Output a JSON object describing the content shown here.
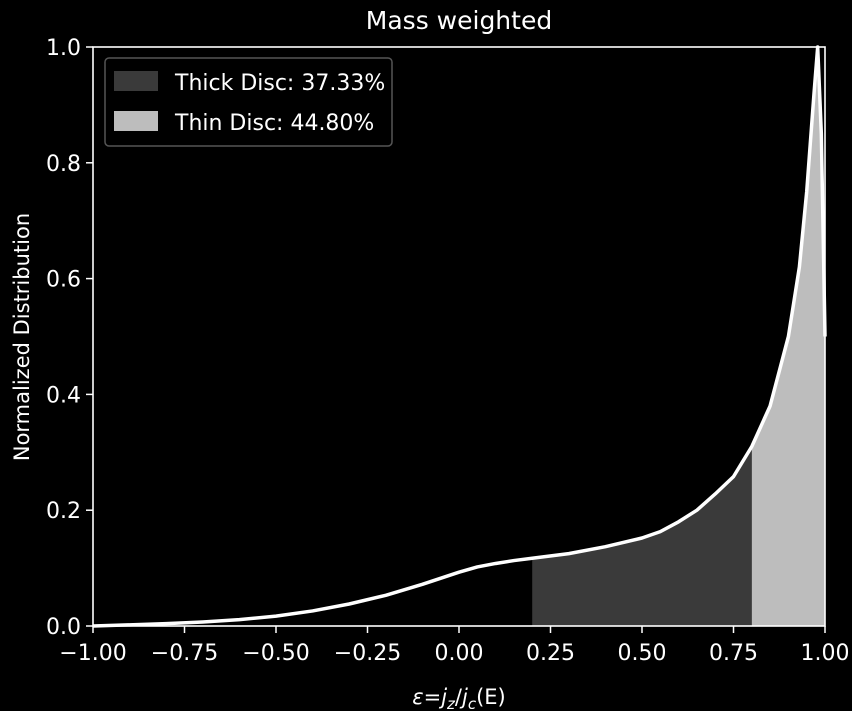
{
  "chart_data": {
    "type": "area",
    "title": "Mass weighted",
    "xlabel": {
      "eps": "ε",
      "eq": "=",
      "j": "j",
      "z": "z",
      "slash": "/",
      "c": "c",
      "E": "(E)"
    },
    "ylabel": "Normalized Distribution",
    "xlim": [
      -1.0,
      1.0
    ],
    "ylim": [
      0.0,
      1.0
    ],
    "xticks": [
      -1.0,
      -0.75,
      -0.5,
      -0.25,
      0.0,
      0.25,
      0.5,
      0.75,
      1.0
    ],
    "xtick_labels": [
      "−1.00",
      "−0.75",
      "−0.50",
      "−0.25",
      "0.00",
      "0.25",
      "0.50",
      "0.75",
      "1.00"
    ],
    "yticks": [
      0.0,
      0.2,
      0.4,
      0.6,
      0.8,
      1.0
    ],
    "ytick_labels": [
      "0.0",
      "0.2",
      "0.4",
      "0.6",
      "0.8",
      "1.0"
    ],
    "grid": false,
    "legend_position": "top-left",
    "curve": {
      "color": "#ffffff",
      "x": [
        -1.0,
        -0.9,
        -0.8,
        -0.7,
        -0.6,
        -0.5,
        -0.4,
        -0.3,
        -0.2,
        -0.1,
        0.0,
        0.05,
        0.1,
        0.15,
        0.2,
        0.3,
        0.4,
        0.5,
        0.55,
        0.6,
        0.65,
        0.7,
        0.75,
        0.8,
        0.85,
        0.9,
        0.93,
        0.95,
        0.97,
        0.98,
        0.99,
        1.0
      ],
      "y": [
        0.0,
        0.002,
        0.004,
        0.007,
        0.011,
        0.017,
        0.026,
        0.038,
        0.053,
        0.072,
        0.093,
        0.102,
        0.108,
        0.113,
        0.117,
        0.125,
        0.137,
        0.152,
        0.163,
        0.18,
        0.2,
        0.228,
        0.258,
        0.31,
        0.38,
        0.5,
        0.62,
        0.75,
        0.92,
        1.0,
        0.85,
        0.5
      ]
    },
    "regions": [
      {
        "name": "Thick Disc: 37.33%",
        "x_start": 0.2,
        "x_end": 0.8,
        "color": "#3a3a3a"
      },
      {
        "name": "Thin Disc: 44.80%",
        "x_start": 0.8,
        "x_end": 1.0,
        "color": "#bdbdbd"
      }
    ]
  }
}
